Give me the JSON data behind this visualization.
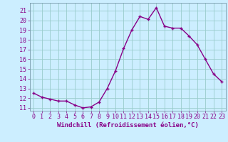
{
  "x": [
    0,
    1,
    2,
    3,
    4,
    5,
    6,
    7,
    8,
    9,
    10,
    11,
    12,
    13,
    14,
    15,
    16,
    17,
    18,
    19,
    20,
    21,
    22,
    23
  ],
  "y": [
    12.5,
    12.1,
    11.9,
    11.7,
    11.7,
    11.3,
    11.0,
    11.1,
    11.6,
    13.0,
    14.8,
    17.1,
    19.0,
    20.4,
    20.1,
    21.3,
    19.4,
    19.2,
    19.2,
    18.4,
    17.5,
    16.0,
    14.5,
    13.7
  ],
  "line_color": "#880088",
  "marker": "+",
  "marker_size": 3,
  "marker_linewidth": 1.0,
  "bg_color": "#cceeff",
  "grid_color": "#99cccc",
  "ylim": [
    10.7,
    21.8
  ],
  "xlim": [
    -0.5,
    23.5
  ],
  "yticks": [
    11,
    12,
    13,
    14,
    15,
    16,
    17,
    18,
    19,
    20,
    21
  ],
  "xticks": [
    0,
    1,
    2,
    3,
    4,
    5,
    6,
    7,
    8,
    9,
    10,
    11,
    12,
    13,
    14,
    15,
    16,
    17,
    18,
    19,
    20,
    21,
    22,
    23
  ],
  "xlabel": "Windchill (Refroidissement éolien,°C)",
  "xlabel_fontsize": 6.5,
  "tick_fontsize": 6,
  "line_width": 1.0,
  "spine_color": "#7799aa"
}
